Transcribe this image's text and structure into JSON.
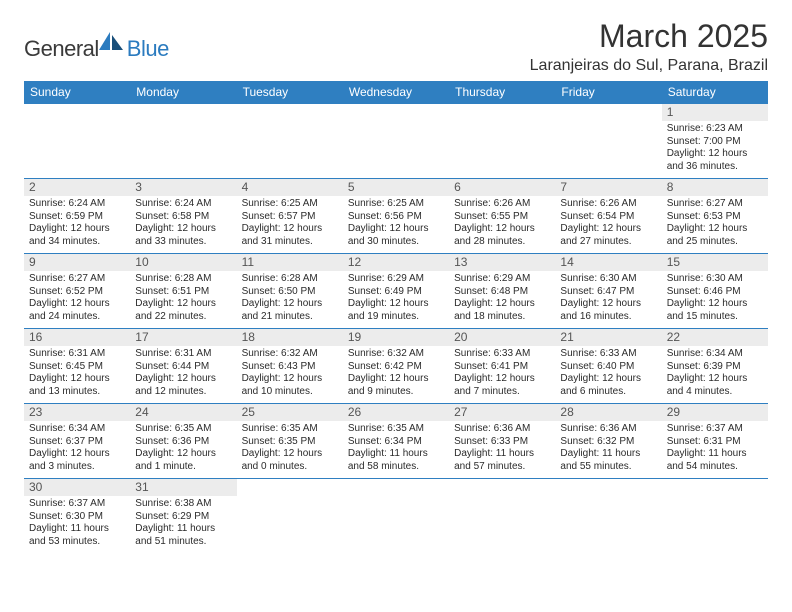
{
  "logo": {
    "text1": "General",
    "text2": "Blue"
  },
  "title": "March 2025",
  "location": "Laranjeiras do Sul, Parana, Brazil",
  "header_bg": "#2f7fc1",
  "header_fg": "#ffffff",
  "divider_color": "#2f7fc1",
  "daynum_bg": "#ececec",
  "weekdays": [
    "Sunday",
    "Monday",
    "Tuesday",
    "Wednesday",
    "Thursday",
    "Friday",
    "Saturday"
  ],
  "weeks": [
    [
      null,
      null,
      null,
      null,
      null,
      null,
      {
        "n": "1",
        "sr": "Sunrise: 6:23 AM",
        "ss": "Sunset: 7:00 PM",
        "d1": "Daylight: 12 hours",
        "d2": "and 36 minutes."
      }
    ],
    [
      {
        "n": "2",
        "sr": "Sunrise: 6:24 AM",
        "ss": "Sunset: 6:59 PM",
        "d1": "Daylight: 12 hours",
        "d2": "and 34 minutes."
      },
      {
        "n": "3",
        "sr": "Sunrise: 6:24 AM",
        "ss": "Sunset: 6:58 PM",
        "d1": "Daylight: 12 hours",
        "d2": "and 33 minutes."
      },
      {
        "n": "4",
        "sr": "Sunrise: 6:25 AM",
        "ss": "Sunset: 6:57 PM",
        "d1": "Daylight: 12 hours",
        "d2": "and 31 minutes."
      },
      {
        "n": "5",
        "sr": "Sunrise: 6:25 AM",
        "ss": "Sunset: 6:56 PM",
        "d1": "Daylight: 12 hours",
        "d2": "and 30 minutes."
      },
      {
        "n": "6",
        "sr": "Sunrise: 6:26 AM",
        "ss": "Sunset: 6:55 PM",
        "d1": "Daylight: 12 hours",
        "d2": "and 28 minutes."
      },
      {
        "n": "7",
        "sr": "Sunrise: 6:26 AM",
        "ss": "Sunset: 6:54 PM",
        "d1": "Daylight: 12 hours",
        "d2": "and 27 minutes."
      },
      {
        "n": "8",
        "sr": "Sunrise: 6:27 AM",
        "ss": "Sunset: 6:53 PM",
        "d1": "Daylight: 12 hours",
        "d2": "and 25 minutes."
      }
    ],
    [
      {
        "n": "9",
        "sr": "Sunrise: 6:27 AM",
        "ss": "Sunset: 6:52 PM",
        "d1": "Daylight: 12 hours",
        "d2": "and 24 minutes."
      },
      {
        "n": "10",
        "sr": "Sunrise: 6:28 AM",
        "ss": "Sunset: 6:51 PM",
        "d1": "Daylight: 12 hours",
        "d2": "and 22 minutes."
      },
      {
        "n": "11",
        "sr": "Sunrise: 6:28 AM",
        "ss": "Sunset: 6:50 PM",
        "d1": "Daylight: 12 hours",
        "d2": "and 21 minutes."
      },
      {
        "n": "12",
        "sr": "Sunrise: 6:29 AM",
        "ss": "Sunset: 6:49 PM",
        "d1": "Daylight: 12 hours",
        "d2": "and 19 minutes."
      },
      {
        "n": "13",
        "sr": "Sunrise: 6:29 AM",
        "ss": "Sunset: 6:48 PM",
        "d1": "Daylight: 12 hours",
        "d2": "and 18 minutes."
      },
      {
        "n": "14",
        "sr": "Sunrise: 6:30 AM",
        "ss": "Sunset: 6:47 PM",
        "d1": "Daylight: 12 hours",
        "d2": "and 16 minutes."
      },
      {
        "n": "15",
        "sr": "Sunrise: 6:30 AM",
        "ss": "Sunset: 6:46 PM",
        "d1": "Daylight: 12 hours",
        "d2": "and 15 minutes."
      }
    ],
    [
      {
        "n": "16",
        "sr": "Sunrise: 6:31 AM",
        "ss": "Sunset: 6:45 PM",
        "d1": "Daylight: 12 hours",
        "d2": "and 13 minutes."
      },
      {
        "n": "17",
        "sr": "Sunrise: 6:31 AM",
        "ss": "Sunset: 6:44 PM",
        "d1": "Daylight: 12 hours",
        "d2": "and 12 minutes."
      },
      {
        "n": "18",
        "sr": "Sunrise: 6:32 AM",
        "ss": "Sunset: 6:43 PM",
        "d1": "Daylight: 12 hours",
        "d2": "and 10 minutes."
      },
      {
        "n": "19",
        "sr": "Sunrise: 6:32 AM",
        "ss": "Sunset: 6:42 PM",
        "d1": "Daylight: 12 hours",
        "d2": "and 9 minutes."
      },
      {
        "n": "20",
        "sr": "Sunrise: 6:33 AM",
        "ss": "Sunset: 6:41 PM",
        "d1": "Daylight: 12 hours",
        "d2": "and 7 minutes."
      },
      {
        "n": "21",
        "sr": "Sunrise: 6:33 AM",
        "ss": "Sunset: 6:40 PM",
        "d1": "Daylight: 12 hours",
        "d2": "and 6 minutes."
      },
      {
        "n": "22",
        "sr": "Sunrise: 6:34 AM",
        "ss": "Sunset: 6:39 PM",
        "d1": "Daylight: 12 hours",
        "d2": "and 4 minutes."
      }
    ],
    [
      {
        "n": "23",
        "sr": "Sunrise: 6:34 AM",
        "ss": "Sunset: 6:37 PM",
        "d1": "Daylight: 12 hours",
        "d2": "and 3 minutes."
      },
      {
        "n": "24",
        "sr": "Sunrise: 6:35 AM",
        "ss": "Sunset: 6:36 PM",
        "d1": "Daylight: 12 hours",
        "d2": "and 1 minute."
      },
      {
        "n": "25",
        "sr": "Sunrise: 6:35 AM",
        "ss": "Sunset: 6:35 PM",
        "d1": "Daylight: 12 hours",
        "d2": "and 0 minutes."
      },
      {
        "n": "26",
        "sr": "Sunrise: 6:35 AM",
        "ss": "Sunset: 6:34 PM",
        "d1": "Daylight: 11 hours",
        "d2": "and 58 minutes."
      },
      {
        "n": "27",
        "sr": "Sunrise: 6:36 AM",
        "ss": "Sunset: 6:33 PM",
        "d1": "Daylight: 11 hours",
        "d2": "and 57 minutes."
      },
      {
        "n": "28",
        "sr": "Sunrise: 6:36 AM",
        "ss": "Sunset: 6:32 PM",
        "d1": "Daylight: 11 hours",
        "d2": "and 55 minutes."
      },
      {
        "n": "29",
        "sr": "Sunrise: 6:37 AM",
        "ss": "Sunset: 6:31 PM",
        "d1": "Daylight: 11 hours",
        "d2": "and 54 minutes."
      }
    ],
    [
      {
        "n": "30",
        "sr": "Sunrise: 6:37 AM",
        "ss": "Sunset: 6:30 PM",
        "d1": "Daylight: 11 hours",
        "d2": "and 53 minutes."
      },
      {
        "n": "31",
        "sr": "Sunrise: 6:38 AM",
        "ss": "Sunset: 6:29 PM",
        "d1": "Daylight: 11 hours",
        "d2": "and 51 minutes."
      },
      null,
      null,
      null,
      null,
      null
    ]
  ]
}
